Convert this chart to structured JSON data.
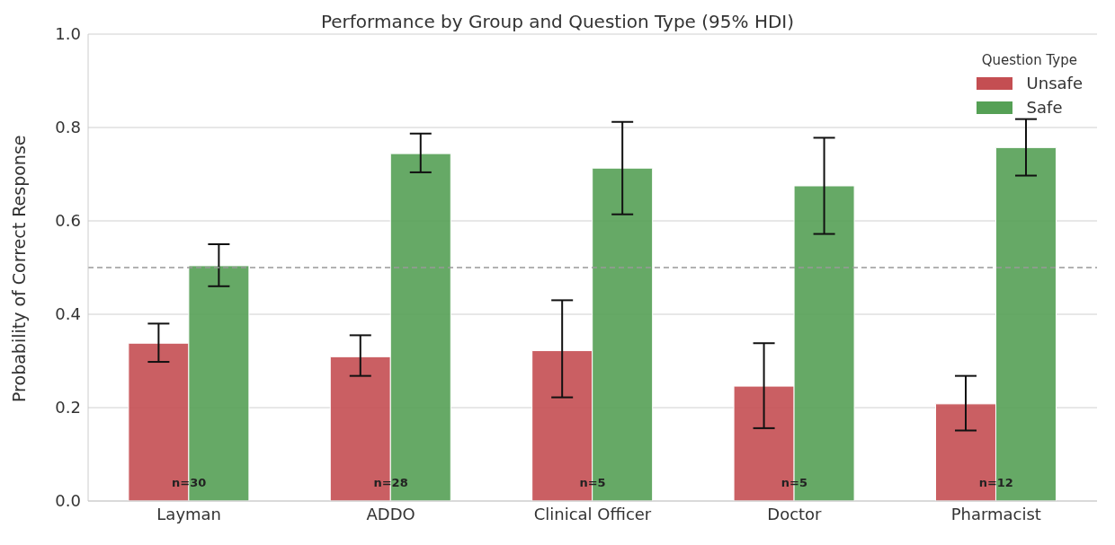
{
  "chart_data": {
    "type": "bar",
    "title": "Performance by Group and Question Type (95% HDI)",
    "ylabel": "Probability of Correct Response",
    "legend_title": "Question Type",
    "categories": [
      "Layman",
      "ADDO",
      "Clinical Officer",
      "Doctor",
      "Pharmacist"
    ],
    "series": [
      {
        "name": "Unsafe",
        "color": "#c44e52",
        "values": [
          0.338,
          0.309,
          0.322,
          0.246,
          0.208
        ],
        "errors": [
          [
            0.298,
            0.38
          ],
          [
            0.268,
            0.355
          ],
          [
            0.222,
            0.43
          ],
          [
            0.156,
            0.338
          ],
          [
            0.151,
            0.268
          ]
        ]
      },
      {
        "name": "Safe",
        "color": "#55a055",
        "values": [
          0.504,
          0.744,
          0.713,
          0.675,
          0.757
        ],
        "errors": [
          [
            0.46,
            0.55
          ],
          [
            0.704,
            0.787
          ],
          [
            0.614,
            0.812
          ],
          [
            0.572,
            0.778
          ],
          [
            0.697,
            0.818
          ]
        ]
      }
    ],
    "ylim": [
      0,
      1
    ],
    "yticks": [
      {
        "value": 0,
        "label": "0.0"
      },
      {
        "value": 0.2,
        "label": "0.2"
      },
      {
        "value": 0.4,
        "label": "0.4"
      },
      {
        "value": 0.6,
        "label": "0.6"
      },
      {
        "value": 0.8,
        "label": "0.8"
      },
      {
        "value": 1,
        "label": "1.0"
      }
    ],
    "grid": "y",
    "legend": "top right",
    "ref_lines": [
      {
        "axis": "y",
        "value": 0.5,
        "color": "#999999",
        "line_style": "dashed"
      }
    ],
    "annotations": [
      {
        "text": "n=30",
        "x": "Layman",
        "y": 0.04
      },
      {
        "text": "n=28",
        "x": "ADDO",
        "y": 0.04
      },
      {
        "text": "n=5",
        "x": "Clinical Officer",
        "y": 0.04
      },
      {
        "text": "n=5",
        "x": "Doctor",
        "y": 0.04
      },
      {
        "text": "n=12",
        "x": "Pharmacist",
        "y": 0.04
      }
    ]
  }
}
